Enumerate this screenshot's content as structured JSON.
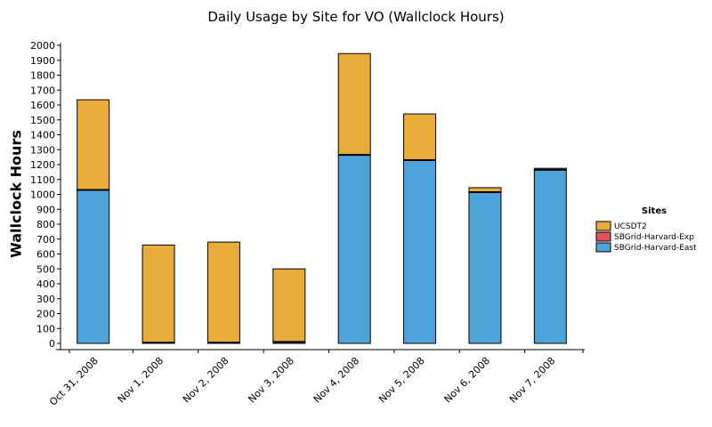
{
  "chart_data": {
    "type": "bar",
    "stacked": true,
    "title": "Daily Usage by Site for VO (Wallclock Hours)",
    "xlabel": "",
    "ylabel": "Wallclock Hours",
    "ylim": [
      0,
      2000
    ],
    "ytick_step": 100,
    "categories": [
      "Oct 31, 2008",
      "Nov 1, 2008",
      "Nov 2, 2008",
      "Nov 3, 2008",
      "Nov 4, 2008",
      "Nov 5, 2008",
      "Nov 6, 2008",
      "Nov 7, 2008"
    ],
    "series": [
      {
        "name": "SBGrid-Harvard-East",
        "color": "#4fa3db",
        "values": [
          1030,
          5,
          5,
          10,
          1265,
          1230,
          1015,
          1165
        ]
      },
      {
        "name": "SBGrid-Harvard-Exp",
        "color": "#e8505b",
        "values": [
          0,
          0,
          0,
          0,
          0,
          0,
          0,
          0
        ]
      },
      {
        "name": "UCSDT2",
        "color": "#e8ac3a",
        "values": [
          605,
          655,
          675,
          490,
          680,
          310,
          30,
          10
        ]
      }
    ],
    "legend_title": "Sites",
    "legend_order": [
      "UCSDT2",
      "SBGrid-Harvard-Exp",
      "SBGrid-Harvard-East"
    ],
    "legend_position": "right",
    "grid": false
  }
}
